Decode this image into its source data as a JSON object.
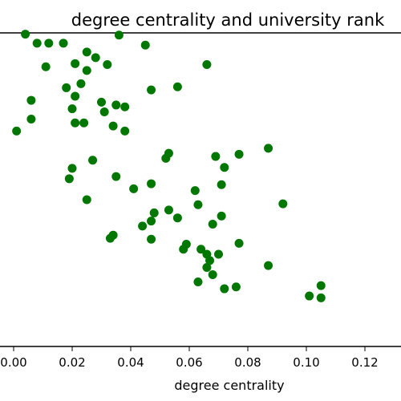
{
  "chart_data": {
    "type": "scatter",
    "title": "degree centrality and university rank",
    "xlabel": "degree centrality",
    "ylabel": "",
    "xlim": [
      0.0,
      0.13
    ],
    "ylim": [
      0,
      100
    ],
    "x_ticks": [
      "0.00",
      "0.02",
      "0.04",
      "0.06",
      "0.08",
      "0.10",
      "0.12"
    ],
    "grid": false,
    "marker_color": "#007700",
    "series": [
      {
        "points": [
          {
            "x": 0.004,
            "y": 99.6
          },
          {
            "x": 0.008,
            "y": 96.7
          },
          {
            "x": 0.012,
            "y": 96.7
          },
          {
            "x": 0.017,
            "y": 96.7
          },
          {
            "x": 0.036,
            "y": 99.3
          },
          {
            "x": 0.045,
            "y": 96.1
          },
          {
            "x": 0.025,
            "y": 93.9
          },
          {
            "x": 0.028,
            "y": 92.1
          },
          {
            "x": 0.032,
            "y": 89.9
          },
          {
            "x": 0.021,
            "y": 90.2
          },
          {
            "x": 0.011,
            "y": 89.2
          },
          {
            "x": 0.025,
            "y": 88.0
          },
          {
            "x": 0.066,
            "y": 89.9
          },
          {
            "x": 0.023,
            "y": 83.8
          },
          {
            "x": 0.018,
            "y": 82.5
          },
          {
            "x": 0.047,
            "y": 81.8
          },
          {
            "x": 0.056,
            "y": 82.8
          },
          {
            "x": 0.021,
            "y": 79.8
          },
          {
            "x": 0.006,
            "y": 78.5
          },
          {
            "x": 0.03,
            "y": 77.9
          },
          {
            "x": 0.035,
            "y": 77.0
          },
          {
            "x": 0.038,
            "y": 76.4
          },
          {
            "x": 0.02,
            "y": 75.8
          },
          {
            "x": 0.031,
            "y": 74.8
          },
          {
            "x": 0.006,
            "y": 72.5
          },
          {
            "x": 0.021,
            "y": 71.3
          },
          {
            "x": 0.024,
            "y": 71.3
          },
          {
            "x": 0.034,
            "y": 70.3
          },
          {
            "x": 0.038,
            "y": 68.7
          },
          {
            "x": 0.001,
            "y": 68.7
          },
          {
            "x": 0.053,
            "y": 61.6
          },
          {
            "x": 0.052,
            "y": 60.0
          },
          {
            "x": 0.069,
            "y": 60.6
          },
          {
            "x": 0.077,
            "y": 61.3
          },
          {
            "x": 0.087,
            "y": 63.2
          },
          {
            "x": 0.027,
            "y": 59.4
          },
          {
            "x": 0.02,
            "y": 56.8
          },
          {
            "x": 0.072,
            "y": 57.1
          },
          {
            "x": 0.019,
            "y": 53.5
          },
          {
            "x": 0.035,
            "y": 54.2
          },
          {
            "x": 0.047,
            "y": 51.9
          },
          {
            "x": 0.041,
            "y": 50.3
          },
          {
            "x": 0.071,
            "y": 51.6
          },
          {
            "x": 0.062,
            "y": 49.7
          },
          {
            "x": 0.025,
            "y": 46.8
          },
          {
            "x": 0.063,
            "y": 45.2
          },
          {
            "x": 0.092,
            "y": 45.5
          },
          {
            "x": 0.053,
            "y": 43.5
          },
          {
            "x": 0.048,
            "y": 42.6
          },
          {
            "x": 0.056,
            "y": 41.0
          },
          {
            "x": 0.071,
            "y": 41.6
          },
          {
            "x": 0.047,
            "y": 40.0
          },
          {
            "x": 0.044,
            "y": 38.4
          },
          {
            "x": 0.068,
            "y": 39.0
          },
          {
            "x": 0.034,
            "y": 35.5
          },
          {
            "x": 0.033,
            "y": 34.5
          },
          {
            "x": 0.047,
            "y": 34.2
          },
          {
            "x": 0.059,
            "y": 32.6
          },
          {
            "x": 0.058,
            "y": 31.0
          },
          {
            "x": 0.077,
            "y": 32.9
          },
          {
            "x": 0.064,
            "y": 31.0
          },
          {
            "x": 0.066,
            "y": 29.4
          },
          {
            "x": 0.07,
            "y": 29.4
          },
          {
            "x": 0.067,
            "y": 27.4
          },
          {
            "x": 0.066,
            "y": 25.2
          },
          {
            "x": 0.087,
            "y": 25.8
          },
          {
            "x": 0.068,
            "y": 22.9
          },
          {
            "x": 0.063,
            "y": 20.6
          },
          {
            "x": 0.072,
            "y": 18.4
          },
          {
            "x": 0.076,
            "y": 19.0
          },
          {
            "x": 0.101,
            "y": 16.1
          },
          {
            "x": 0.105,
            "y": 15.5
          },
          {
            "x": 0.105,
            "y": 19.4
          }
        ]
      }
    ]
  }
}
